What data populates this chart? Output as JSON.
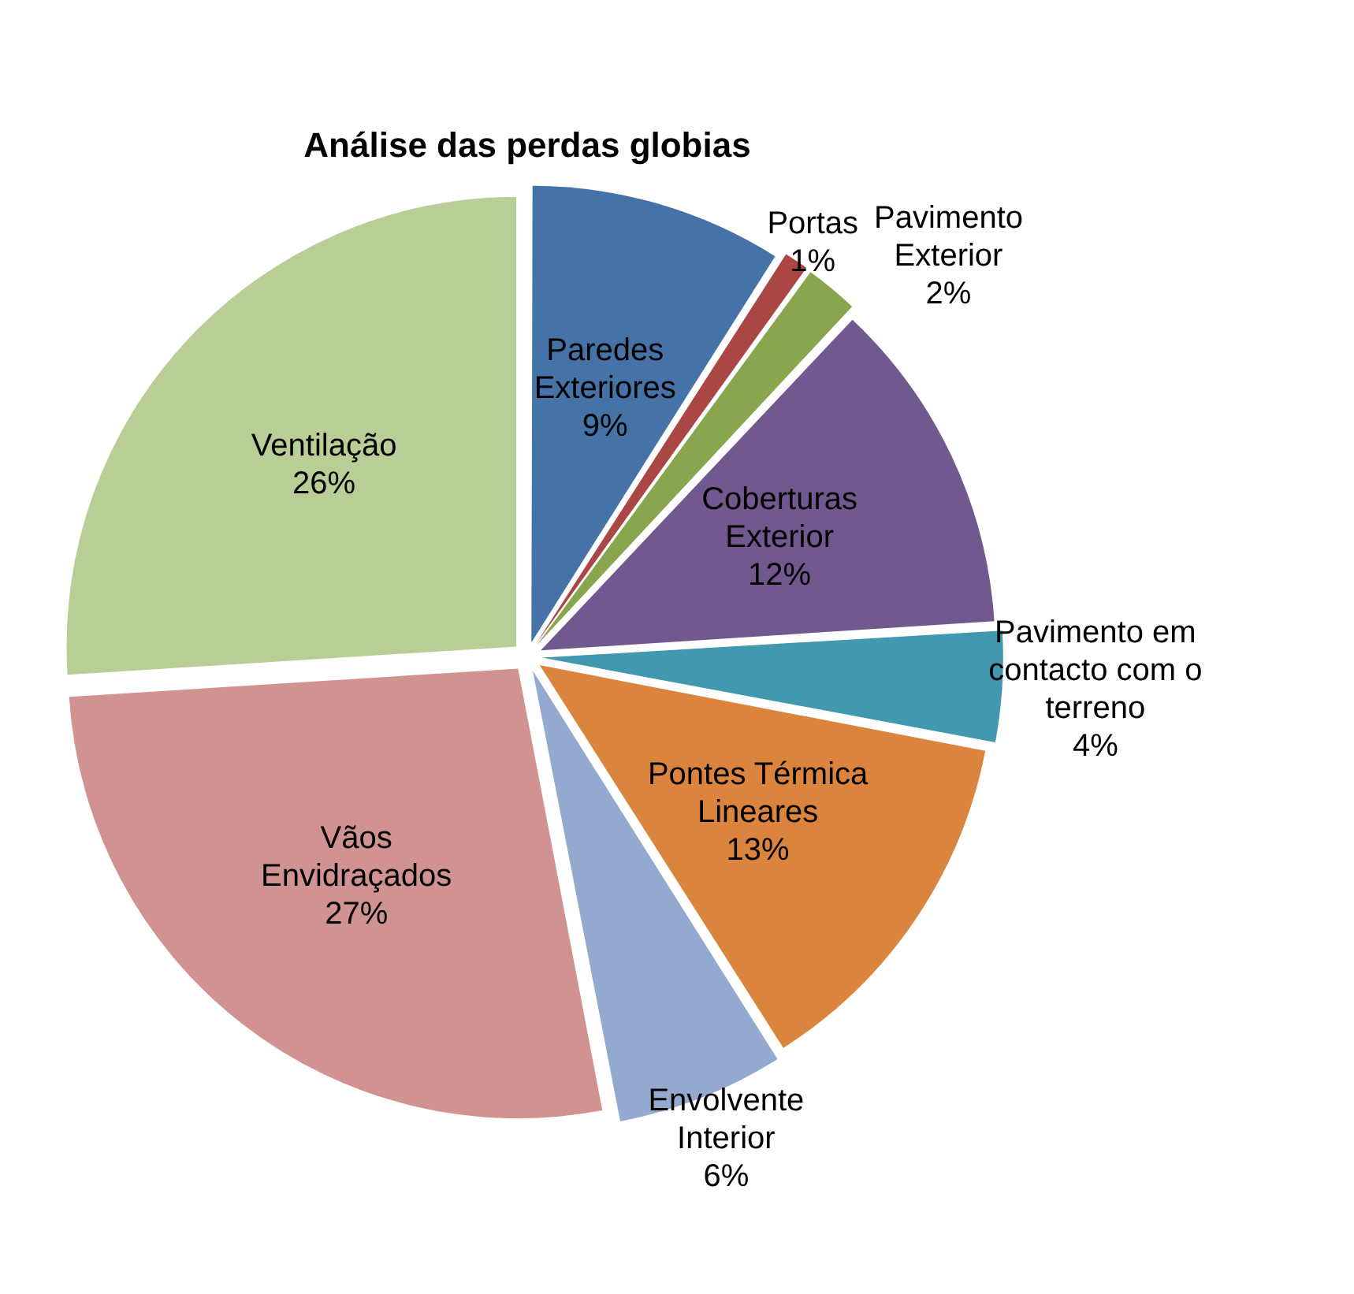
{
  "chart_data": {
    "type": "pie",
    "title": "Análise das perdas globias",
    "categories": [
      "Paredes Exteriores",
      "Portas",
      "Pavimento Exterior",
      "Coberturas Exterior",
      "Pavimento em contacto com o terreno",
      "Pontes Térmica Lineares",
      "Envolvente Interior",
      "Vãos Envidraçados",
      "Ventilação"
    ],
    "values": [
      9,
      1,
      2,
      12,
      4,
      13,
      6,
      27,
      26
    ],
    "colors": [
      "#4572a7",
      "#aa4643",
      "#89a54e",
      "#71588f",
      "#4198af",
      "#db843d",
      "#93a9cf",
      "#d19392",
      "#b9cd96"
    ],
    "value_labels": [
      "9%",
      "1%",
      "2%",
      "12%",
      "4%",
      "13%",
      "6%",
      "27%",
      "26%"
    ],
    "legend": false
  }
}
